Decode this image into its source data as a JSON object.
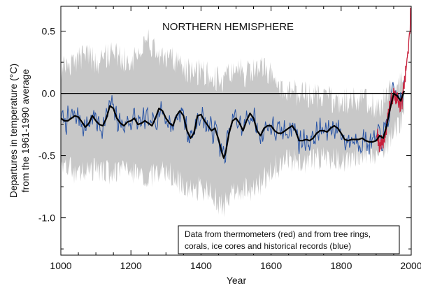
{
  "chart_data": {
    "type": "line",
    "title": "NORTHERN HEMISPHERE",
    "xlabel": "Year",
    "ylabel_lines": [
      "Departures in temperature (°C)",
      "from the 1961-1990 average"
    ],
    "xlim": [
      1000,
      2000
    ],
    "ylim": [
      -1.3,
      0.7
    ],
    "x_ticks": [
      1000,
      1200,
      1400,
      1600,
      1800,
      2000
    ],
    "y_ticks": [
      0.5,
      0.0,
      -0.5,
      -1.0
    ],
    "y_tick_labels": [
      "0.5",
      "0.0",
      "-0.5",
      "-1.0"
    ],
    "zero_line": 0.0,
    "annotation_lines": [
      "Data from thermometers (red) and from tree rings,",
      "corals, ice cores and historical records (blue)"
    ],
    "colors": {
      "uncertainty": "#c8c8c8",
      "proxy": "#2b56a6",
      "instrumental": "#c8203c",
      "smoothed": "#000000"
    },
    "series": [
      {
        "name": "uncertainty band",
        "kind": "band",
        "x": [
          1000,
          1025,
          1050,
          1075,
          1100,
          1125,
          1150,
          1175,
          1200,
          1225,
          1250,
          1275,
          1300,
          1325,
          1350,
          1375,
          1400,
          1425,
          1450,
          1465,
          1475,
          1500,
          1525,
          1550,
          1575,
          1600,
          1625,
          1650,
          1675,
          1700,
          1725,
          1750,
          1775,
          1800,
          1825,
          1850,
          1875,
          1900,
          1925,
          1950,
          1980
        ],
        "upper": [
          0.3,
          0.33,
          0.38,
          0.45,
          0.35,
          0.4,
          0.45,
          0.4,
          0.35,
          0.45,
          0.55,
          0.4,
          0.4,
          0.38,
          0.3,
          0.28,
          0.28,
          0.25,
          0.22,
          0.15,
          0.28,
          0.33,
          0.25,
          0.3,
          0.32,
          0.25,
          0.1,
          0.15,
          0.1,
          0.1,
          0.08,
          0.1,
          0.05,
          0.05,
          0.05,
          0.05,
          0.05,
          0.0,
          0.05,
          0.15,
          0.2
        ],
        "lower": [
          -0.72,
          -0.7,
          -0.75,
          -0.72,
          -0.7,
          -0.72,
          -0.75,
          -0.7,
          -0.72,
          -0.75,
          -0.78,
          -0.75,
          -0.72,
          -0.78,
          -0.85,
          -0.9,
          -0.85,
          -0.9,
          -0.98,
          -1.02,
          -0.95,
          -0.9,
          -0.85,
          -0.88,
          -0.82,
          -0.7,
          -0.68,
          -0.62,
          -0.65,
          -0.65,
          -0.62,
          -0.62,
          -0.62,
          -0.65,
          -0.62,
          -0.6,
          -0.58,
          -0.58,
          -0.55,
          -0.4,
          -0.3
        ]
      },
      {
        "name": "smoothed",
        "kind": "line",
        "x": [
          1000,
          1010,
          1020,
          1030,
          1040,
          1050,
          1060,
          1070,
          1080,
          1090,
          1100,
          1110,
          1120,
          1130,
          1140,
          1150,
          1160,
          1170,
          1180,
          1190,
          1200,
          1210,
          1220,
          1230,
          1240,
          1250,
          1260,
          1270,
          1280,
          1290,
          1300,
          1310,
          1320,
          1330,
          1340,
          1350,
          1360,
          1370,
          1380,
          1390,
          1400,
          1410,
          1420,
          1430,
          1440,
          1450,
          1460,
          1465,
          1470,
          1480,
          1490,
          1500,
          1510,
          1520,
          1530,
          1540,
          1550,
          1560,
          1570,
          1580,
          1590,
          1600,
          1610,
          1620,
          1630,
          1640,
          1650,
          1660,
          1670,
          1680,
          1690,
          1700,
          1710,
          1720,
          1730,
          1740,
          1750,
          1760,
          1770,
          1780,
          1790,
          1800,
          1810,
          1820,
          1830,
          1840,
          1850,
          1860,
          1870,
          1880,
          1890,
          1900,
          1910,
          1920,
          1930,
          1940,
          1950,
          1960,
          1970,
          1980
        ],
        "y": [
          -0.2,
          -0.22,
          -0.22,
          -0.2,
          -0.18,
          -0.19,
          -0.23,
          -0.27,
          -0.24,
          -0.18,
          -0.22,
          -0.25,
          -0.26,
          -0.2,
          -0.1,
          -0.12,
          -0.2,
          -0.24,
          -0.26,
          -0.23,
          -0.22,
          -0.2,
          -0.25,
          -0.24,
          -0.22,
          -0.24,
          -0.26,
          -0.2,
          -0.12,
          -0.14,
          -0.2,
          -0.24,
          -0.26,
          -0.18,
          -0.14,
          -0.18,
          -0.3,
          -0.36,
          -0.32,
          -0.18,
          -0.17,
          -0.22,
          -0.26,
          -0.3,
          -0.28,
          -0.37,
          -0.48,
          -0.52,
          -0.48,
          -0.32,
          -0.22,
          -0.2,
          -0.24,
          -0.3,
          -0.22,
          -0.16,
          -0.2,
          -0.3,
          -0.34,
          -0.28,
          -0.26,
          -0.26,
          -0.3,
          -0.32,
          -0.32,
          -0.3,
          -0.28,
          -0.26,
          -0.3,
          -0.38,
          -0.38,
          -0.37,
          -0.38,
          -0.36,
          -0.32,
          -0.3,
          -0.3,
          -0.31,
          -0.28,
          -0.26,
          -0.28,
          -0.32,
          -0.37,
          -0.38,
          -0.37,
          -0.37,
          -0.37,
          -0.36,
          -0.38,
          -0.39,
          -0.39,
          -0.38,
          -0.34,
          -0.36,
          -0.26,
          -0.12,
          0.0,
          -0.02,
          -0.06,
          0.02
        ]
      },
      {
        "name": "proxy",
        "kind": "noisy",
        "x0": 1000,
        "x1": 1980,
        "step": 2,
        "amplitude": 0.08,
        "seed": 7
      },
      {
        "name": "instrumental",
        "kind": "noisy-line",
        "x": [
          1902,
          1910,
          1920,
          1930,
          1940,
          1950,
          1960,
          1970,
          1975,
          1980,
          1985,
          1990,
          1995,
          1998
        ],
        "y": [
          -0.3,
          -0.42,
          -0.38,
          -0.28,
          -0.08,
          -0.02,
          -0.04,
          -0.1,
          -0.05,
          0.1,
          0.2,
          0.3,
          0.45,
          0.62
        ],
        "amplitude": 0.07,
        "seed": 19
      }
    ]
  }
}
